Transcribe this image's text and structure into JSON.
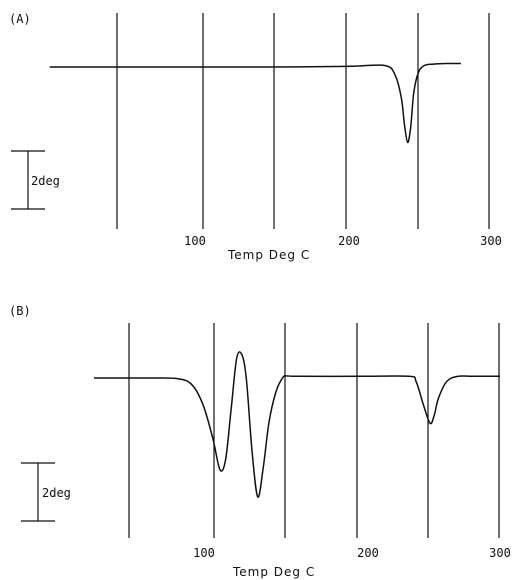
{
  "chart_data": [
    {
      "type": "line",
      "panel_label": "(A)",
      "xlabel": "Temp Deg C",
      "xticks": [
        100,
        200,
        300
      ],
      "scale_bar_label": "2deg",
      "xlim": [
        0,
        300
      ],
      "grid": "vertical lines",
      "series": [
        {
          "x": [
            5,
            50,
            100,
            150,
            200,
            225,
            232,
            236,
            238,
            240,
            242,
            244,
            247,
            251,
            257,
            265,
            275
          ],
          "y": [
            0,
            0,
            0,
            0,
            0.02,
            0.05,
            -0.3,
            -1.1,
            -2.0,
            -2.6,
            -2.1,
            -0.9,
            -0.2,
            0.05,
            0.1,
            0.12,
            0.12
          ]
        }
      ]
    },
    {
      "type": "line",
      "panel_label": "(B)",
      "xlabel": "Temp Deg C",
      "xticks": [
        100,
        200,
        300
      ],
      "scale_bar_label": "2deg",
      "xlim": [
        0,
        300
      ],
      "grid": "vertical lines",
      "series": [
        {
          "x": [
            10,
            50,
            70,
            80,
            88,
            95,
            100,
            104,
            108,
            112,
            116,
            119,
            123,
            127,
            131,
            135,
            140,
            145,
            148,
            155,
            200,
            235,
            240,
            245,
            250,
            253,
            256,
            262,
            270,
            280,
            290,
            300
          ],
          "y": [
            0,
            0,
            -0.02,
            -0.2,
            -0.8,
            -1.8,
            -2.7,
            -2.4,
            -0.9,
            0.6,
            0.65,
            -0.1,
            -2.2,
            -3.5,
            -2.6,
            -1.3,
            -0.4,
            0.02,
            0.06,
            0.05,
            0.05,
            0.05,
            -0.1,
            -0.75,
            -1.33,
            -1.1,
            -0.6,
            -0.1,
            0.05,
            0.05,
            0.05,
            0.05
          ]
        }
      ]
    }
  ]
}
